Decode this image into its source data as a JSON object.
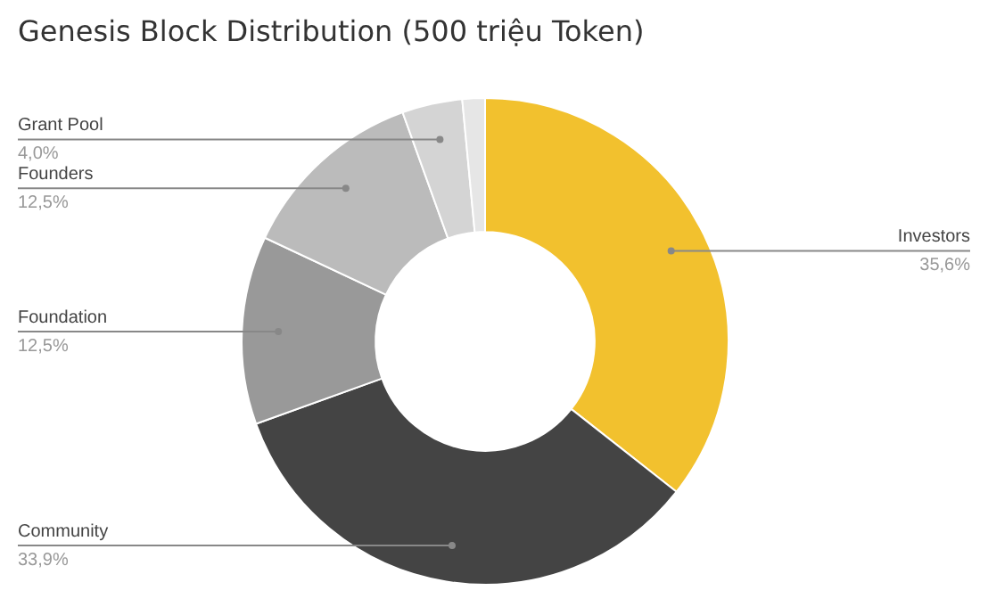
{
  "chart_data": {
    "type": "donut",
    "title": "Genesis Block Distribution (500 triệu Token)",
    "categories": [
      "Investors",
      "Community",
      "Foundation",
      "Founders",
      "Grant Pool",
      null
    ],
    "values": [
      35.6,
      33.9,
      12.5,
      12.5,
      4.0,
      1.5
    ],
    "value_labels": [
      "35,6%",
      "33,9%",
      "12,5%",
      "12,5%",
      "4,0%",
      null
    ],
    "colors": [
      "#f2c12e",
      "#444444",
      "#999999",
      "#bbbbbb",
      "#d4d4d4",
      "#e6e6e6"
    ],
    "legend": false
  }
}
